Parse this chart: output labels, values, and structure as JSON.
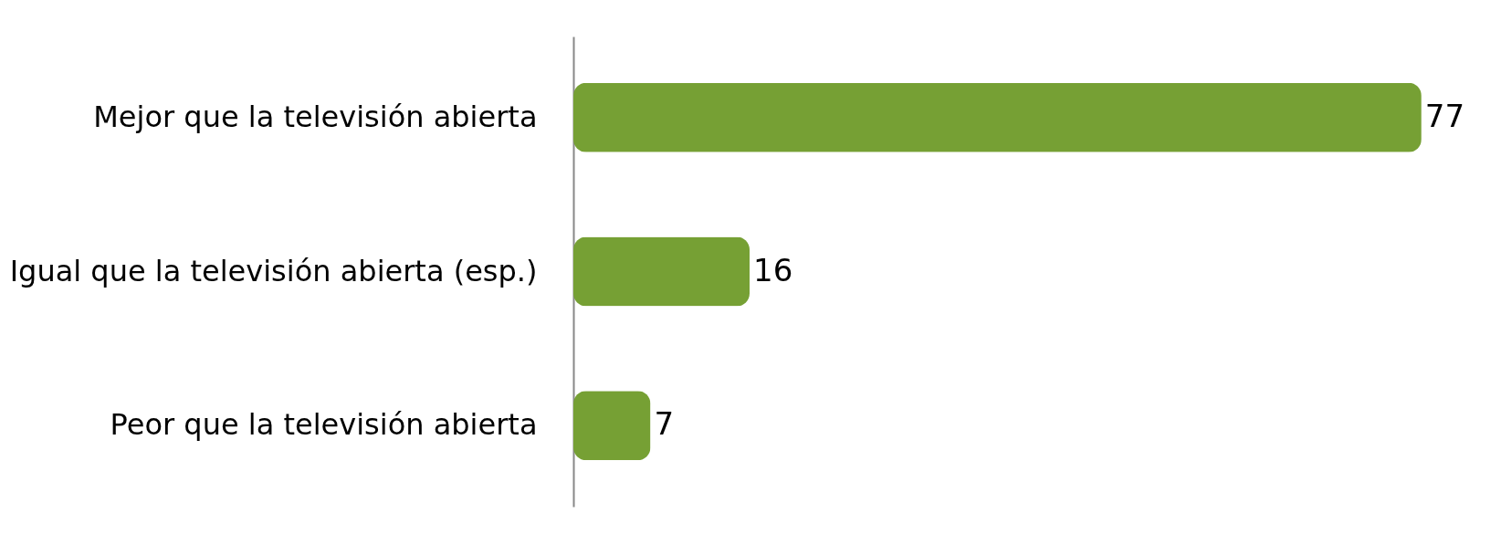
{
  "chart_data": {
    "type": "bar",
    "orientation": "horizontal",
    "categories": [
      "Mejor que la televisión abierta",
      "Igual que la televisión abierta (esp.)",
      "Peor que la televisión abierta"
    ],
    "values": [
      77,
      16,
      7
    ],
    "color": "#76a034",
    "data_labels": true
  }
}
